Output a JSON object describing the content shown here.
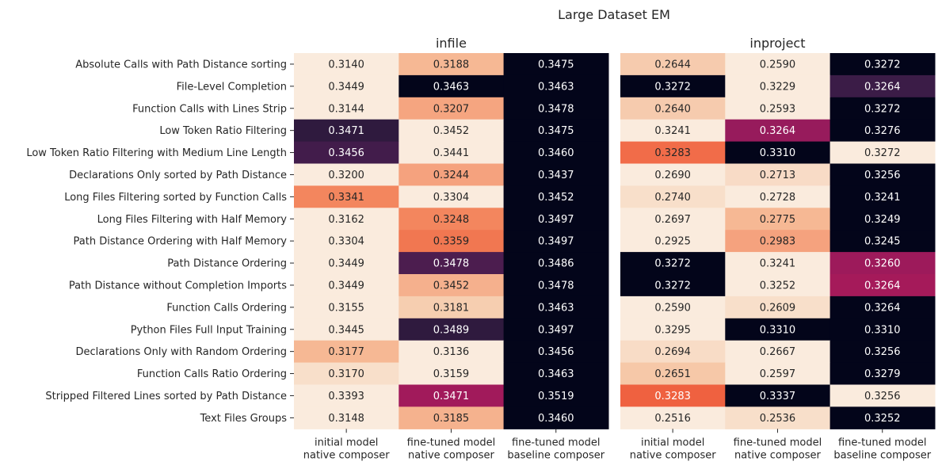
{
  "chart_data": {
    "type": "heatmap",
    "title": "Large Dataset EM",
    "colormap": "rocket (dark = high value)",
    "rows": [
      "Absolute Calls with Path Distance sorting",
      "File-Level Completion",
      "Function Calls with Lines Strip",
      "Low Token Ratio Filtering",
      "Low Token Ratio Filtering with Medium Line Length",
      "Declarations Only sorted by Path Distance",
      "Long Files Filtering sorted by Function Calls",
      "Long Files Filtering with Half Memory",
      "Path Distance Ordering with Half Memory",
      "Path Distance Ordering",
      "Path Distance without Completion Imports",
      "Function Calls Ordering",
      "Python Files Full Input Training",
      "Declarations Only with Random Ordering",
      "Function Calls Ratio Ordering",
      "Stripped Filtered Lines sorted by Path Distance",
      "Text Files Groups"
    ],
    "panels": [
      {
        "title": "infile",
        "columns": [
          [
            "initial model",
            "native composer"
          ],
          [
            "fine-tuned model",
            "native composer"
          ],
          [
            "fine-tuned model",
            "baseline composer"
          ]
        ],
        "values": [
          [
            0.314,
            0.3188,
            0.3475
          ],
          [
            0.3449,
            0.3463,
            0.3463
          ],
          [
            0.3144,
            0.3207,
            0.3478
          ],
          [
            0.3471,
            0.3452,
            0.3475
          ],
          [
            0.3456,
            0.3441,
            0.346
          ],
          [
            0.32,
            0.3244,
            0.3437
          ],
          [
            0.3341,
            0.3304,
            0.3452
          ],
          [
            0.3162,
            0.3248,
            0.3497
          ],
          [
            0.3304,
            0.3359,
            0.3497
          ],
          [
            0.3449,
            0.3478,
            0.3486
          ],
          [
            0.3449,
            0.3452,
            0.3478
          ],
          [
            0.3155,
            0.3181,
            0.3463
          ],
          [
            0.3445,
            0.3489,
            0.3497
          ],
          [
            0.3177,
            0.3136,
            0.3456
          ],
          [
            0.317,
            0.3159,
            0.3463
          ],
          [
            0.3393,
            0.3471,
            0.3519
          ],
          [
            0.3148,
            0.3185,
            0.346
          ]
        ],
        "colors": [
          [
            "#faebdd",
            "#f6b894",
            "#03051a"
          ],
          [
            "#faebdd",
            "#03051a",
            "#03051a"
          ],
          [
            "#faebdd",
            "#f5a580",
            "#03051a"
          ],
          [
            "#2f1a3e",
            "#faebdd",
            "#03051a"
          ],
          [
            "#421c4b",
            "#faebdd",
            "#03051a"
          ],
          [
            "#faebdd",
            "#f5a27e",
            "#03051a"
          ],
          [
            "#f3865e",
            "#faebdd",
            "#03051a"
          ],
          [
            "#faebdd",
            "#f3865e",
            "#03051a"
          ],
          [
            "#faebdd",
            "#f17751",
            "#03051a"
          ],
          [
            "#faebdd",
            "#4c1d4f",
            "#03051a"
          ],
          [
            "#faebdd",
            "#f5b08d",
            "#03051a"
          ],
          [
            "#faebdd",
            "#f6ceb0",
            "#03051a"
          ],
          [
            "#faebdd",
            "#2f1a3e",
            "#03051a"
          ],
          [
            "#f6b894",
            "#faebdd",
            "#03051a"
          ],
          [
            "#f8dfca",
            "#faebdd",
            "#03051a"
          ],
          [
            "#faebdd",
            "#a11a5b",
            "#03051a"
          ],
          [
            "#faebdd",
            "#f5b28e",
            "#03051a"
          ]
        ]
      },
      {
        "title": "inproject",
        "columns": [
          [
            "initial model",
            "native composer"
          ],
          [
            "fine-tuned model",
            "native composer"
          ],
          [
            "fine-tuned model",
            "baseline composer"
          ]
        ],
        "values": [
          [
            0.2644,
            0.259,
            0.3272
          ],
          [
            0.3272,
            0.3229,
            0.3264
          ],
          [
            0.264,
            0.2593,
            0.3272
          ],
          [
            0.3241,
            0.3264,
            0.3276
          ],
          [
            0.3283,
            0.331,
            0.3272
          ],
          [
            0.269,
            0.2713,
            0.3256
          ],
          [
            0.274,
            0.2728,
            0.3241
          ],
          [
            0.2697,
            0.2775,
            0.3249
          ],
          [
            0.2925,
            0.2983,
            0.3245
          ],
          [
            0.3272,
            0.3241,
            0.326
          ],
          [
            0.3272,
            0.3252,
            0.3264
          ],
          [
            0.259,
            0.2609,
            0.3264
          ],
          [
            0.3295,
            0.331,
            0.331
          ],
          [
            0.2694,
            0.2667,
            0.3256
          ],
          [
            0.2651,
            0.2597,
            0.3279
          ],
          [
            0.3283,
            0.3337,
            0.3256
          ],
          [
            0.2516,
            0.2536,
            0.3252
          ]
        ],
        "colors": [
          [
            "#f6cbae",
            "#faebdd",
            "#03051a"
          ],
          [
            "#03051a",
            "#faebdd",
            "#3b1c47"
          ],
          [
            "#f6cbae",
            "#faebdd",
            "#03051a"
          ],
          [
            "#faebdd",
            "#971b5c",
            "#03051a"
          ],
          [
            "#f16c49",
            "#03051a",
            "#faebdd"
          ],
          [
            "#faebdd",
            "#f8dbc6",
            "#03051a"
          ],
          [
            "#f8dfca",
            "#faebdd",
            "#03051a"
          ],
          [
            "#faebdd",
            "#f6b894",
            "#03051a"
          ],
          [
            "#faebdd",
            "#f5a27e",
            "#03051a"
          ],
          [
            "#03051a",
            "#faebdd",
            "#9d1a5b"
          ],
          [
            "#03051a",
            "#faebdd",
            "#a51a5a"
          ],
          [
            "#faebdd",
            "#f8dfca",
            "#03051a"
          ],
          [
            "#faebdd",
            "#03051a",
            "#03051a"
          ],
          [
            "#f8dcc6",
            "#faebdd",
            "#03051a"
          ],
          [
            "#f6c8a8",
            "#faebdd",
            "#03051a"
          ],
          [
            "#ef6140",
            "#03051a",
            "#faebdd"
          ],
          [
            "#faebdd",
            "#f8dfca",
            "#03051a"
          ]
        ]
      }
    ]
  }
}
